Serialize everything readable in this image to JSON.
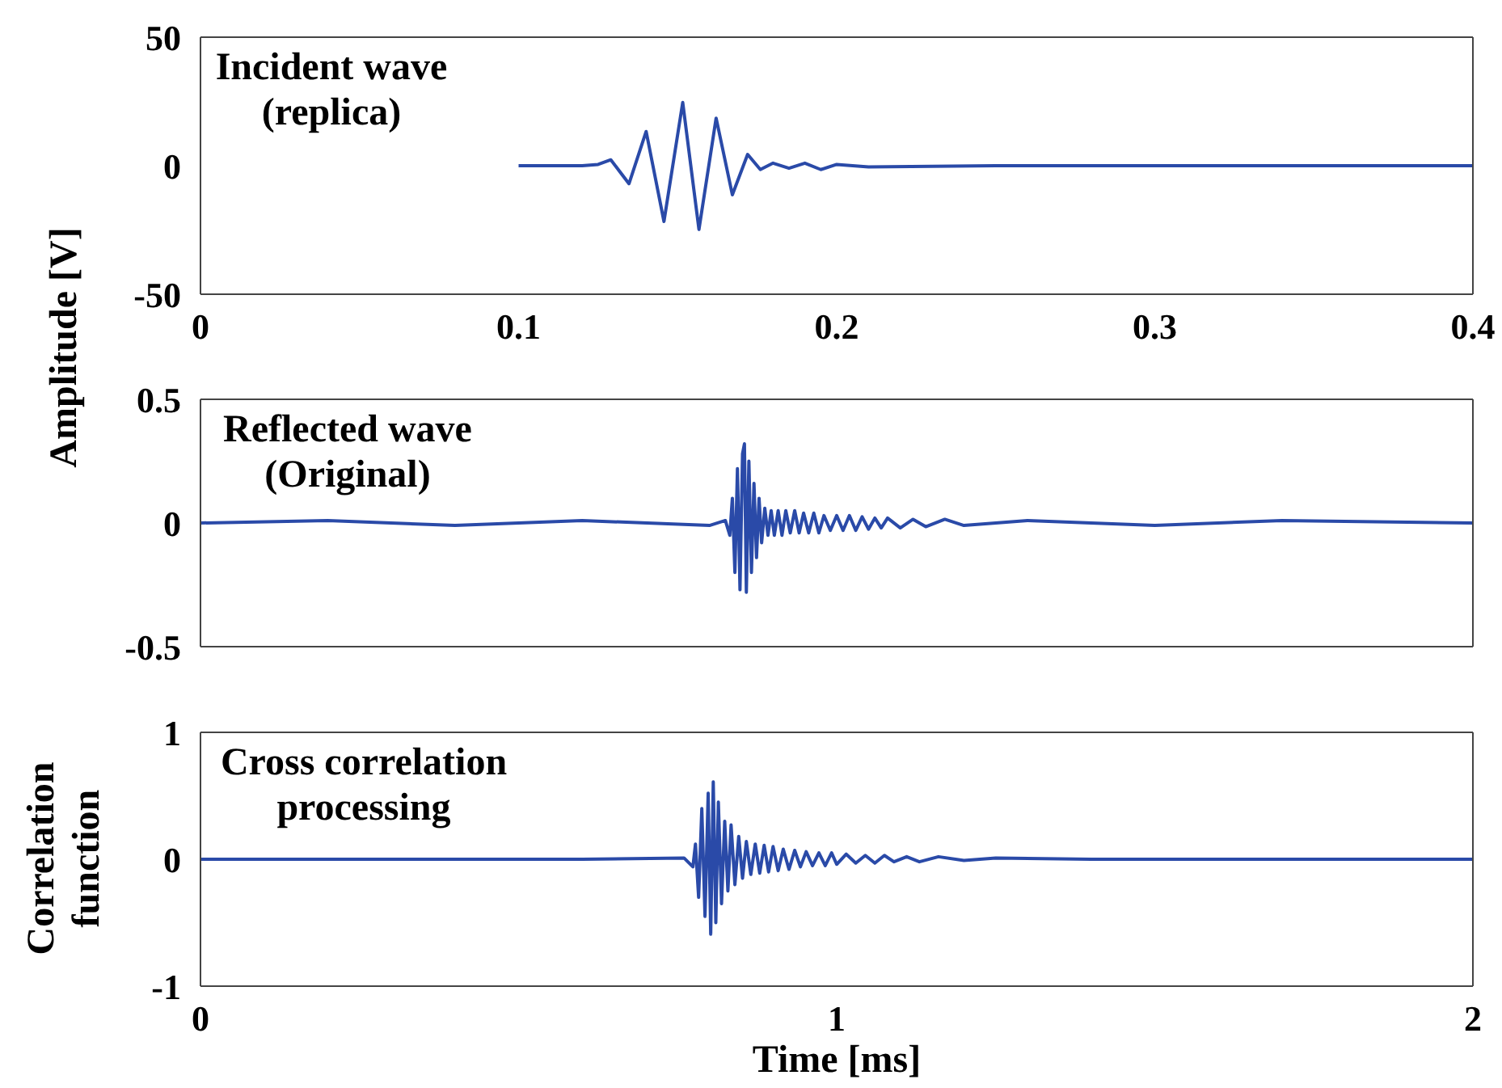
{
  "chart_data": [
    {
      "type": "line",
      "ylabel": "Amplitude [V]",
      "annotations": [
        "Incident wave (replica)"
      ],
      "xlim": [
        0,
        0.4
      ],
      "xticks": [
        0,
        0.1,
        0.2,
        0.3,
        0.4
      ],
      "ylim": [
        -50,
        50
      ],
      "yticks": [
        -50,
        0,
        50
      ],
      "grid": false,
      "legend": false,
      "marker": "none",
      "series": [
        {
          "color": "#2a4aa8",
          "x": [
            0.1,
            0.12,
            0.125,
            0.129,
            0.1347,
            0.1401,
            0.1457,
            0.1516,
            0.1567,
            0.1621,
            0.1672,
            0.172,
            0.176,
            0.18,
            0.185,
            0.19,
            0.195,
            0.2,
            0.21,
            0.25,
            0.3,
            0.35,
            0.4
          ],
          "values": [
            0,
            0,
            0.5,
            2.3,
            -7,
            13.3,
            -21.7,
            24.6,
            -24.8,
            18.5,
            -11.3,
            4.4,
            -1.5,
            1,
            -1,
            1,
            -1.5,
            0.5,
            -0.5,
            0,
            0,
            0,
            0
          ]
        }
      ]
    },
    {
      "type": "line",
      "annotations": [
        "Reflected wave (Original)"
      ],
      "xlim": [
        0,
        2
      ],
      "xticks": [
        0,
        1,
        2
      ],
      "ylim": [
        -0.5,
        0.5
      ],
      "yticks": [
        -0.5,
        0,
        0.5
      ],
      "tick_labels": "y",
      "grid": false,
      "legend": false,
      "marker": "none",
      "series": [
        {
          "color": "#2a4aa8",
          "x": [
            0,
            0.2,
            0.4,
            0.6,
            0.8,
            0.825,
            0.832,
            0.836,
            0.84,
            0.844,
            0.848,
            0.852,
            0.855,
            0.858,
            0.862,
            0.866,
            0.87,
            0.874,
            0.878,
            0.882,
            0.887,
            0.892,
            0.897,
            0.902,
            0.908,
            0.914,
            0.92,
            0.927,
            0.934,
            0.941,
            0.948,
            0.956,
            0.964,
            0.972,
            0.98,
            0.99,
            1.0,
            1.01,
            1.02,
            1.03,
            1.04,
            1.05,
            1.06,
            1.07,
            1.08,
            1.1,
            1.12,
            1.14,
            1.17,
            1.2,
            1.3,
            1.5,
            1.7,
            2.0
          ],
          "values": [
            0,
            0.01,
            -0.01,
            0.01,
            -0.01,
            0.01,
            -0.05,
            0.1,
            -0.2,
            0.22,
            -0.27,
            0.28,
            0.32,
            -0.28,
            0.25,
            -0.2,
            0.16,
            -0.14,
            0.1,
            -0.08,
            0.06,
            -0.05,
            0.05,
            -0.05,
            0.05,
            -0.05,
            0.05,
            -0.04,
            0.05,
            -0.04,
            0.04,
            -0.04,
            0.04,
            -0.04,
            0.03,
            -0.03,
            0.03,
            -0.03,
            0.03,
            -0.03,
            0.025,
            -0.025,
            0.02,
            -0.02,
            0.02,
            -0.02,
            0.015,
            -0.015,
            0.015,
            -0.01,
            0.01,
            -0.01,
            0.01,
            0
          ]
        }
      ]
    },
    {
      "type": "line",
      "ylabel": "Correlation function",
      "xlabel": "Time [ms]",
      "annotations": [
        "Cross correlation processing"
      ],
      "xlim": [
        0,
        2
      ],
      "xticks": [
        0,
        1,
        2
      ],
      "ylim": [
        -1,
        1
      ],
      "yticks": [
        -1,
        0,
        1
      ],
      "grid": false,
      "legend": false,
      "marker": "none",
      "series": [
        {
          "color": "#2a4aa8",
          "x": [
            0,
            0.3,
            0.6,
            0.76,
            0.774,
            0.778,
            0.783,
            0.788,
            0.793,
            0.798,
            0.802,
            0.806,
            0.81,
            0.814,
            0.819,
            0.824,
            0.829,
            0.834,
            0.84,
            0.846,
            0.852,
            0.858,
            0.865,
            0.872,
            0.879,
            0.886,
            0.893,
            0.9,
            0.908,
            0.916,
            0.925,
            0.934,
            0.943,
            0.952,
            0.962,
            0.972,
            0.982,
            0.992,
            1.0,
            1.015,
            1.03,
            1.045,
            1.06,
            1.075,
            1.09,
            1.11,
            1.13,
            1.16,
            1.2,
            1.25,
            1.4,
            1.8,
            2.0
          ],
          "values": [
            0,
            0,
            0,
            0.01,
            -0.06,
            0.12,
            -0.3,
            0.4,
            -0.45,
            0.52,
            -0.59,
            0.61,
            -0.5,
            0.45,
            -0.35,
            0.3,
            -0.25,
            0.27,
            -0.2,
            0.18,
            -0.15,
            0.14,
            -0.12,
            0.12,
            -0.11,
            0.11,
            -0.1,
            0.1,
            -0.09,
            0.08,
            -0.08,
            0.07,
            -0.06,
            0.06,
            -0.05,
            0.05,
            -0.05,
            0.05,
            -0.04,
            0.04,
            -0.03,
            0.03,
            -0.03,
            0.03,
            -0.02,
            0.02,
            -0.02,
            0.02,
            -0.01,
            0.01,
            0,
            0,
            0
          ]
        }
      ]
    }
  ]
}
